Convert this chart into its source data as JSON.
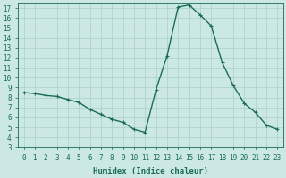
{
  "x": [
    0,
    1,
    2,
    3,
    4,
    5,
    6,
    7,
    8,
    9,
    10,
    11,
    12,
    13,
    14,
    15,
    16,
    17,
    18,
    19,
    20,
    21,
    22,
    23
  ],
  "y": [
    8.5,
    8.4,
    8.2,
    8.1,
    7.8,
    7.5,
    6.8,
    6.3,
    5.8,
    5.5,
    4.8,
    4.5,
    8.8,
    12.2,
    17.1,
    17.3,
    16.3,
    15.2,
    11.5,
    9.2,
    7.4,
    6.5,
    5.2,
    4.8
  ],
  "line_color": "#1a6b5a",
  "marker": "+",
  "markersize": 3,
  "linewidth": 1.0,
  "bg_color": "#cce8e4",
  "grid_color": "#aacfca",
  "xlabel": "Humidex (Indice chaleur)",
  "ylim": [
    3,
    17.5
  ],
  "xlim": [
    -0.5,
    23.5
  ],
  "yticks": [
    3,
    4,
    5,
    6,
    7,
    8,
    9,
    10,
    11,
    12,
    13,
    14,
    15,
    16,
    17
  ],
  "xticks": [
    0,
    1,
    2,
    3,
    4,
    5,
    6,
    7,
    8,
    9,
    10,
    11,
    12,
    13,
    14,
    15,
    16,
    17,
    18,
    19,
    20,
    21,
    22,
    23
  ],
  "tick_color": "#1a6b5a",
  "label_color": "#1a6b5a",
  "xlabel_fontsize": 6.5,
  "tick_fontsize": 5.5
}
